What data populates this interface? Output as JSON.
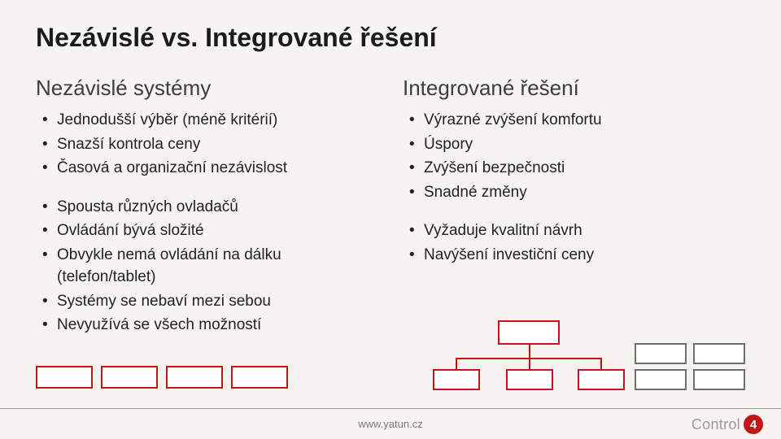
{
  "title": "Nezávislé vs. Integrované řešení",
  "left": {
    "heading": "Nezávislé systémy",
    "group1": [
      "Jednodušší výběr (méně kritérií)",
      "Snazší kontrola ceny",
      "Časová a organizační nezávislost"
    ],
    "group2": [
      "Spousta různých ovladačů",
      "Ovládání bývá složité",
      "Obvykle nemá ovládání na dálku (telefon/tablet)",
      "Systémy se nebaví mezi sebou",
      "Nevyužívá se všech možností"
    ]
  },
  "right": {
    "heading": "Integrované řešení",
    "group1": [
      "Výrazné zvýšení komfortu",
      "Úspory",
      "Zvýšení bezpečnosti",
      "Snadné změny"
    ],
    "group2": [
      "Vyžaduje kvalitní návrh",
      "Navýšení investiční ceny"
    ]
  },
  "diagram": {
    "box_border_color": "#c41616",
    "grid_border_color": "#6e6e6e",
    "left_box_count": 4,
    "tree_children": 3,
    "grid_rows": 2,
    "grid_cols": 2
  },
  "footer": {
    "url": "www.yatun.cz",
    "logo_text": "Control",
    "logo_badge": "4"
  },
  "colors": {
    "background": "#f6f4f0",
    "title": "#1b1b1b",
    "heading": "#3d3d3d",
    "body_text": "#222222",
    "footer_text": "#7a7a7a",
    "footer_rule": "#9a9a9a",
    "logo_text": "#9b9b9b",
    "accent_red": "#c41616"
  },
  "typography": {
    "title_size_pt": 24,
    "heading_size_pt": 20,
    "body_size_pt": 14,
    "footer_size_pt": 10
  }
}
